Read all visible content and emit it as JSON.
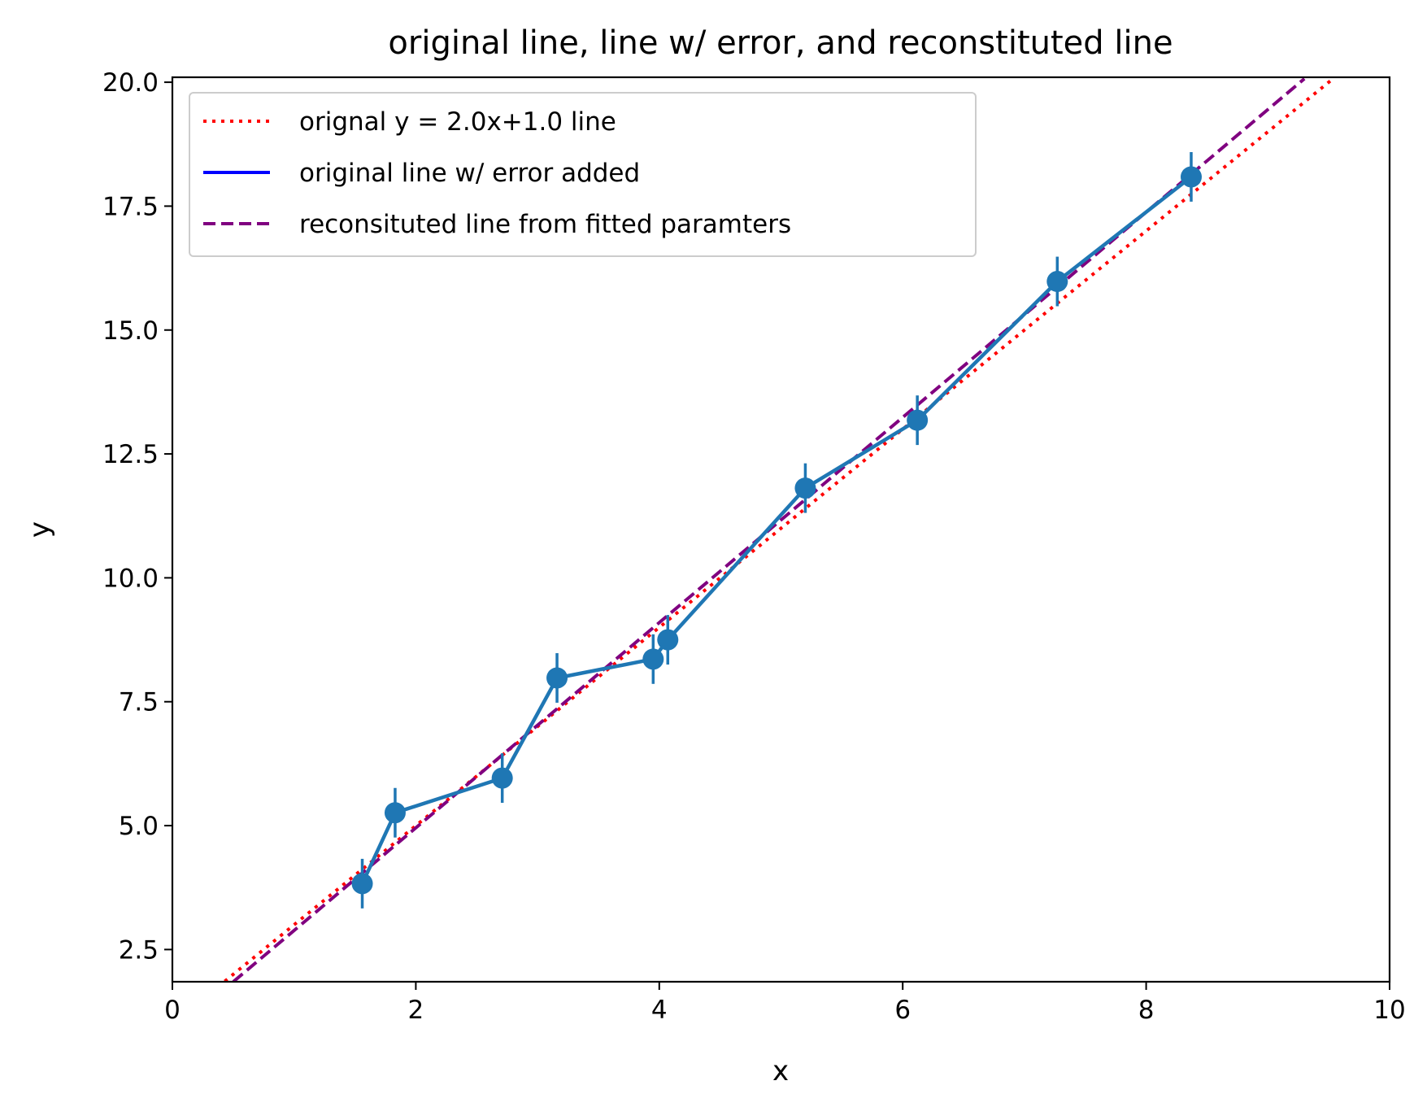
{
  "chart_data": {
    "type": "line",
    "title": "original line, line w/ error, and reconstituted line",
    "xlabel": "x",
    "ylabel": "y",
    "xlim": [
      0,
      10
    ],
    "ylim": [
      1.85,
      20.1
    ],
    "x_ticks": [
      "0",
      "2",
      "4",
      "6",
      "8",
      "10"
    ],
    "x_tick_values": [
      0,
      2,
      4,
      6,
      8,
      10
    ],
    "y_ticks": [
      "2.5",
      "5.0",
      "7.5",
      "10.0",
      "12.5",
      "15.0",
      "17.5",
      "20.0"
    ],
    "y_tick_values": [
      2.5,
      5.0,
      7.5,
      10.0,
      12.5,
      15.0,
      17.5,
      20.0
    ],
    "grid": false,
    "legend_position": "top-left",
    "series": [
      {
        "name": "orignal y = 2.0x+1.0 line",
        "style": "dotted",
        "color": "#ff0000",
        "x": [
          0.43,
          9.52
        ],
        "y": [
          1.86,
          20.04
        ]
      },
      {
        "name": "original line w/ error added",
        "style": "solid",
        "color": "#0000ff",
        "marker_color": "#1f77b4",
        "x": [
          1.56,
          1.83,
          2.71,
          3.16,
          3.95,
          4.07,
          5.2,
          6.12,
          7.27,
          8.37
        ],
        "y": [
          3.83,
          5.26,
          5.96,
          7.98,
          8.36,
          8.75,
          11.81,
          13.18,
          15.98,
          18.09
        ],
        "yerr": [
          0.5,
          0.5,
          0.5,
          0.5,
          0.5,
          0.5,
          0.5,
          0.5,
          0.5,
          0.5
        ]
      },
      {
        "name": "reconsituted line from fitted paramters",
        "style": "dashed",
        "color": "#800080",
        "x": [
          0.5,
          9.3
        ],
        "y": [
          1.85,
          20.07
        ]
      }
    ]
  }
}
